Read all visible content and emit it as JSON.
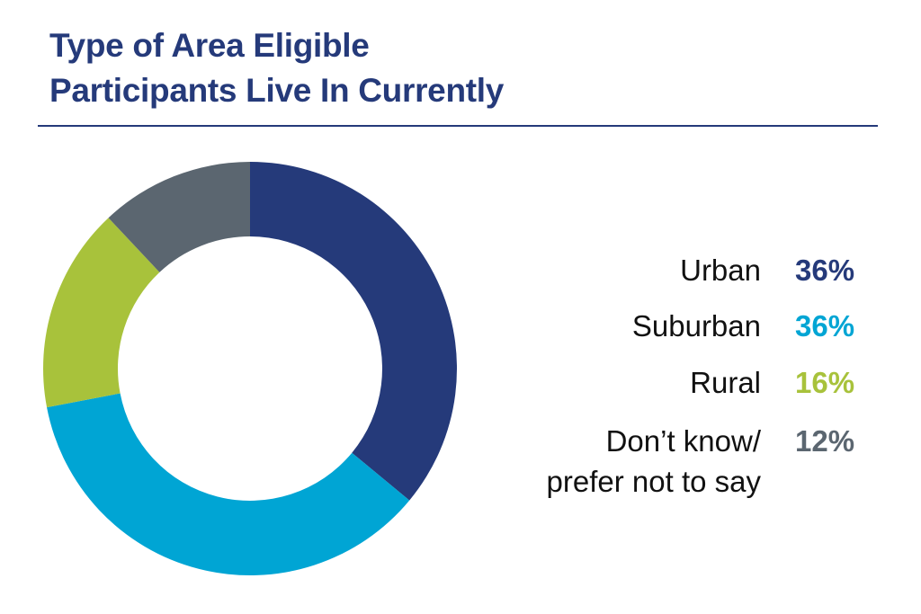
{
  "title_line1": "Type of Area Eligible",
  "title_line2": "Participants Live In Currently",
  "chart_data": {
    "type": "pie",
    "donut": true,
    "title": "Type of Area Eligible Participants Live In Currently",
    "legend_position": "right",
    "slices": [
      {
        "label": "Urban",
        "value": 36,
        "display": "36%",
        "color": "#253a7a"
      },
      {
        "label": "Suburban",
        "value": 36,
        "display": "36%",
        "color": "#00a5d4"
      },
      {
        "label": "Rural",
        "value": 16,
        "display": "16%",
        "color": "#a8c23b"
      },
      {
        "label": "Don’t know/\nprefer not to say",
        "value": 12,
        "display": "12%",
        "color": "#5b6670"
      }
    ]
  }
}
